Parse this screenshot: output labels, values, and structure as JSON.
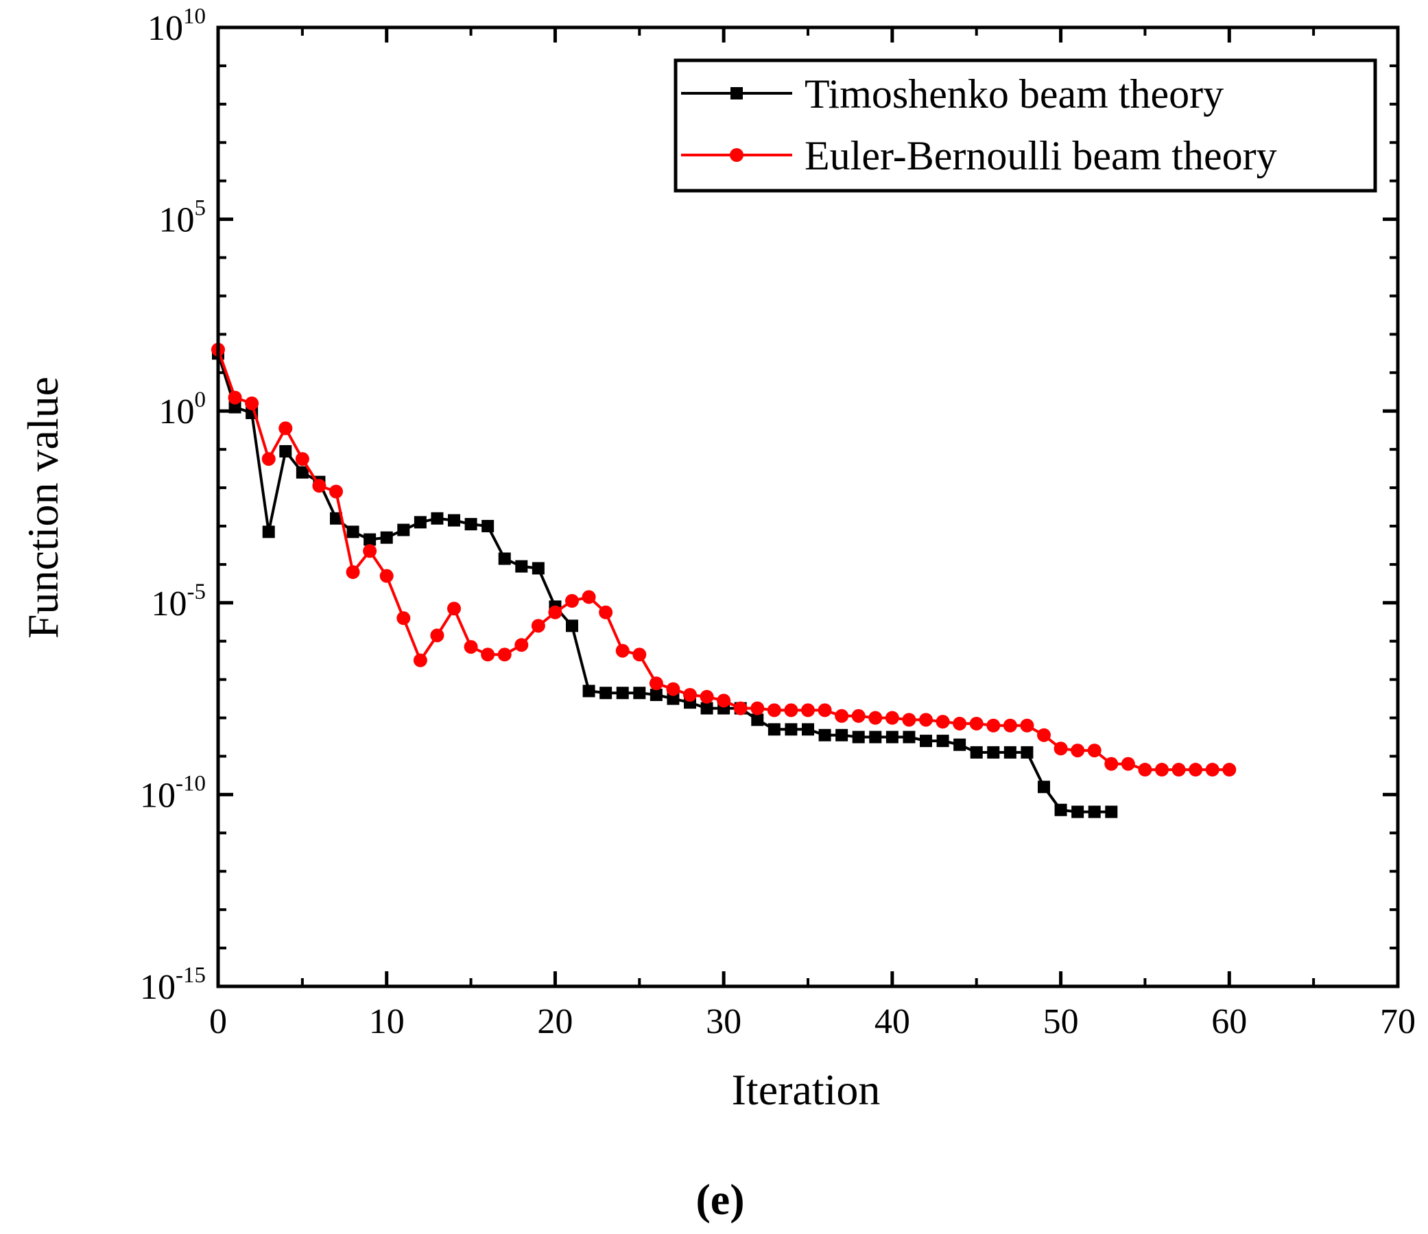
{
  "chart_data": {
    "type": "line",
    "title": "",
    "panel_label": "(e)",
    "xlabel": "Iteration",
    "ylabel": "Function value",
    "xlim": [
      0,
      70
    ],
    "ylim_log10": [
      -15,
      10
    ],
    "yscale": "log",
    "x_ticks": [
      0,
      10,
      20,
      30,
      40,
      50,
      60,
      70
    ],
    "x_tick_labels": [
      "0",
      "10",
      "20",
      "30",
      "40",
      "50",
      "60",
      "70"
    ],
    "y_ticks": [
      {
        "exp": 10,
        "base": "10",
        "sup": "10"
      },
      {
        "exp": 5,
        "base": "10",
        "sup": "5"
      },
      {
        "exp": 0,
        "base": "10",
        "sup": "0"
      },
      {
        "exp": -5,
        "base": "10",
        "sup": "-5"
      },
      {
        "exp": -10,
        "base": "10",
        "sup": "-10"
      },
      {
        "exp": -15,
        "base": "10",
        "sup": "-15"
      }
    ],
    "legend_position": "top-right",
    "series": [
      {
        "name": "Timoshenko beam theory",
        "color": "#000000",
        "marker": "square",
        "x": [
          0,
          1,
          2,
          3,
          4,
          5,
          6,
          7,
          8,
          9,
          10,
          11,
          12,
          13,
          14,
          15,
          16,
          17,
          18,
          19,
          20,
          21,
          22,
          23,
          24,
          25,
          26,
          27,
          28,
          29,
          30,
          31,
          32,
          33,
          34,
          35,
          36,
          37,
          38,
          39,
          40,
          41,
          42,
          43,
          44,
          45,
          46,
          47,
          48,
          49,
          50,
          51,
          52,
          53
        ],
        "log10_y": [
          1.5,
          0.1,
          -0.05,
          -3.15,
          -1.05,
          -1.6,
          -1.85,
          -2.8,
          -3.15,
          -3.35,
          -3.3,
          -3.1,
          -2.9,
          -2.8,
          -2.85,
          -2.95,
          -3.0,
          -3.85,
          -4.05,
          -4.1,
          -5.1,
          -5.6,
          -7.3,
          -7.35,
          -7.35,
          -7.35,
          -7.4,
          -7.5,
          -7.6,
          -7.75,
          -7.75,
          -7.75,
          -8.05,
          -8.3,
          -8.3,
          -8.3,
          -8.45,
          -8.45,
          -8.5,
          -8.5,
          -8.5,
          -8.5,
          -8.6,
          -8.6,
          -8.7,
          -8.9,
          -8.9,
          -8.9,
          -8.9,
          -9.8,
          -10.4,
          -10.45,
          -10.45,
          -10.45
        ]
      },
      {
        "name": "Euler-Bernoulli beam theory",
        "color": "#ff0000",
        "marker": "circle",
        "x": [
          0,
          1,
          2,
          3,
          4,
          5,
          6,
          7,
          8,
          9,
          10,
          11,
          12,
          13,
          14,
          15,
          16,
          17,
          18,
          19,
          20,
          21,
          22,
          23,
          24,
          25,
          26,
          27,
          28,
          29,
          30,
          31,
          32,
          33,
          34,
          35,
          36,
          37,
          38,
          39,
          40,
          41,
          42,
          43,
          44,
          45,
          46,
          47,
          48,
          49,
          50,
          51,
          52,
          53,
          54,
          55,
          56,
          57,
          58,
          59,
          60
        ],
        "log10_y": [
          1.6,
          0.35,
          0.2,
          -1.25,
          -0.45,
          -1.25,
          -1.95,
          -2.1,
          -4.2,
          -3.65,
          -4.3,
          -5.4,
          -6.5,
          -5.85,
          -5.15,
          -6.15,
          -6.35,
          -6.35,
          -6.1,
          -5.6,
          -5.25,
          -4.95,
          -4.85,
          -5.25,
          -6.25,
          -6.35,
          -7.1,
          -7.25,
          -7.4,
          -7.45,
          -7.55,
          -7.75,
          -7.75,
          -7.8,
          -7.8,
          -7.8,
          -7.8,
          -7.95,
          -7.95,
          -8.0,
          -8.0,
          -8.05,
          -8.05,
          -8.1,
          -8.15,
          -8.15,
          -8.2,
          -8.2,
          -8.2,
          -8.45,
          -8.8,
          -8.85,
          -8.85,
          -9.2,
          -9.2,
          -9.35,
          -9.35,
          -9.35,
          -9.35,
          -9.35,
          -9.35
        ]
      }
    ]
  }
}
